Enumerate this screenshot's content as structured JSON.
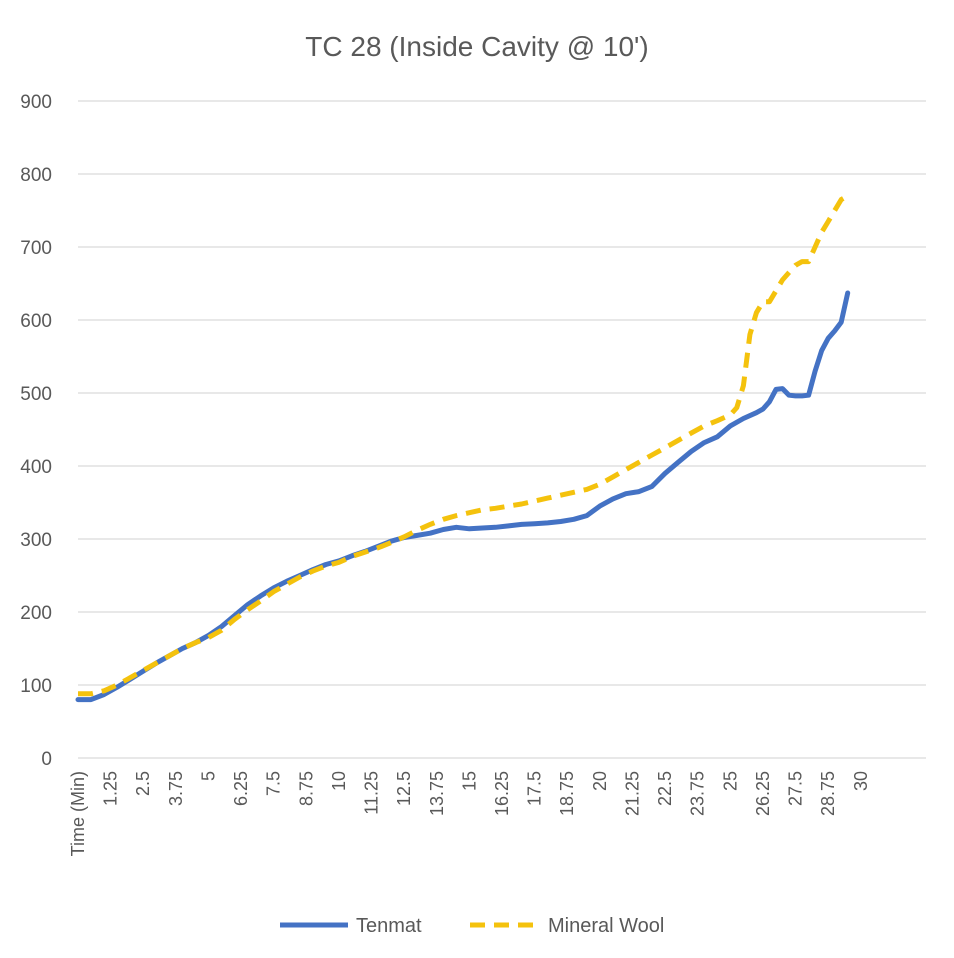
{
  "chart_data": {
    "type": "line",
    "title": "TC 28 (Inside Cavity @ 10')",
    "xlabel": "",
    "ylabel": "",
    "ylim": [
      0,
      900
    ],
    "yticks": [
      0,
      100,
      200,
      300,
      400,
      500,
      600,
      700,
      800,
      900
    ],
    "x_tick_labels": [
      "Time (Min)",
      "1.25",
      "2.5",
      "3.75",
      "5",
      "6.25",
      "7.5",
      "8.75",
      "10",
      "11.25",
      "12.5",
      "13.75",
      "15",
      "16.25",
      "17.5",
      "18.75",
      "20",
      "21.25",
      "22.5",
      "23.75",
      "25",
      "26.25",
      "27.5",
      "28.75",
      "30"
    ],
    "xlim": [
      0,
      32.5
    ],
    "grid": true,
    "legend_position": "bottom",
    "series": [
      {
        "name": "Tenmat",
        "color": "#4472c4",
        "style": "solid",
        "x": [
          0,
          0.5,
          1,
          1.5,
          2,
          2.5,
          3,
          3.5,
          4,
          4.5,
          5,
          5.5,
          6,
          6.5,
          7,
          7.5,
          8,
          8.5,
          9,
          9.5,
          10,
          10.5,
          11,
          11.5,
          12,
          12.5,
          13,
          13.5,
          14,
          14.5,
          15,
          15.5,
          16,
          16.5,
          17,
          17.5,
          18,
          18.5,
          19,
          19.5,
          20,
          20.5,
          21,
          21.5,
          22,
          22.5,
          23,
          23.5,
          24,
          24.5,
          25,
          25.5,
          26,
          26.25,
          26.5,
          26.75,
          27,
          27.25,
          27.5,
          27.75,
          28,
          28.25,
          28.5,
          28.75,
          29,
          29.25,
          29.5
        ],
        "values": [
          80,
          80,
          87,
          97,
          108,
          119,
          130,
          140,
          150,
          158,
          168,
          180,
          195,
          210,
          222,
          233,
          242,
          250,
          258,
          265,
          270,
          277,
          283,
          290,
          297,
          302,
          305,
          308,
          313,
          316,
          314,
          315,
          316,
          318,
          320,
          321,
          322,
          324,
          327,
          332,
          345,
          355,
          362,
          365,
          372,
          390,
          405,
          420,
          432,
          440,
          455,
          465,
          473,
          478,
          488,
          505,
          506,
          497,
          496,
          496,
          497,
          530,
          558,
          575,
          585,
          597,
          637
        ]
      },
      {
        "name": "Mineral Wool",
        "color": "#f4c20d",
        "style": "dashed",
        "x": [
          0,
          0.5,
          1,
          1.5,
          2,
          2.5,
          3,
          3.5,
          4,
          4.5,
          5,
          5.5,
          6,
          6.5,
          7,
          7.5,
          8,
          8.5,
          9,
          9.5,
          10,
          10.5,
          11,
          11.5,
          12,
          12.5,
          13,
          13.5,
          14,
          14.5,
          15,
          15.5,
          16,
          16.5,
          17,
          17.5,
          18,
          18.5,
          19,
          19.5,
          20,
          20.5,
          21,
          21.5,
          22,
          22.5,
          23,
          23.5,
          24,
          24.5,
          25,
          25.25,
          25.5,
          25.75,
          26,
          26.25,
          26.5,
          26.75,
          27,
          27.25,
          27.5,
          27.75,
          28,
          28.25,
          28.5,
          28.75,
          29,
          29.25,
          29.5
        ],
        "values": [
          88,
          88,
          92,
          100,
          110,
          120,
          130,
          140,
          150,
          158,
          165,
          175,
          190,
          203,
          215,
          228,
          238,
          248,
          256,
          263,
          268,
          276,
          282,
          288,
          295,
          303,
          312,
          320,
          327,
          332,
          336,
          340,
          342,
          345,
          348,
          352,
          356,
          360,
          364,
          368,
          375,
          385,
          395,
          405,
          415,
          425,
          435,
          445,
          455,
          462,
          470,
          480,
          510,
          580,
          610,
          625,
          625,
          640,
          655,
          665,
          675,
          680,
          680,
          700,
          720,
          735,
          750,
          765,
          770
        ]
      }
    ]
  }
}
